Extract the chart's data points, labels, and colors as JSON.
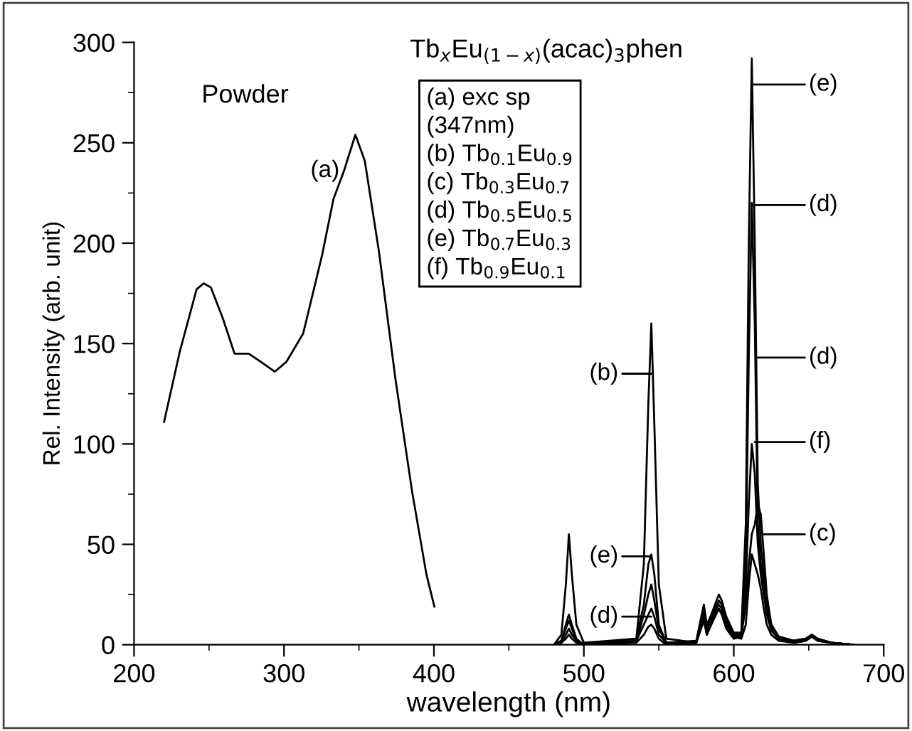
{
  "chart_data": {
    "type": "line",
    "title": "Tb$_{x}$Eu$_{(1−x)}$(acac)$_{3}$phen",
    "xlabel": "wavelength (nm)",
    "ylabel": "Rel. Intensity (arb. unit)",
    "x": [
      480,
      485,
      488,
      490,
      492,
      495,
      500,
      535,
      540,
      543,
      545,
      547,
      550,
      555,
      575,
      580,
      582,
      585,
      590,
      592,
      595,
      600,
      605,
      608,
      610,
      612,
      614,
      616,
      618,
      620,
      622,
      625,
      630,
      640,
      648,
      652,
      656,
      665,
      680
    ],
    "series": [
      {
        "color": "#000000",
        "x": [
          220,
          230.5,
          241.7,
          246.4,
          251.2,
          259,
          267,
          276.5,
          284.4,
          293.8,
          301.7,
          312.8,
          325.4,
          333,
          340,
          347.6,
          353.9,
          363.3,
          374.4,
          385.5,
          395,
          400.3
        ],
        "values": [
          111,
          146,
          177,
          180,
          178,
          163,
          145,
          145,
          141,
          136,
          141,
          155,
          194,
          222,
          236,
          254,
          241,
          196,
          132,
          76,
          35,
          19
        ]
      },
      {
        "color": "#000000",
        "values": [
          0,
          5,
          30,
          55,
          35,
          10,
          1,
          3,
          40,
          120,
          160,
          110,
          30,
          3,
          1,
          15,
          5,
          12,
          20,
          18,
          10,
          4,
          3,
          10,
          30,
          45,
          40,
          35,
          28,
          18,
          10,
          5,
          2,
          1,
          2,
          4,
          2,
          1,
          0
        ]
      },
      {
        "color": "#000000",
        "values": [
          0,
          2,
          10,
          15,
          10,
          3,
          0,
          2,
          15,
          25,
          30,
          22,
          8,
          1,
          1,
          12,
          5,
          10,
          18,
          15,
          8,
          3,
          4,
          20,
          40,
          55,
          60,
          70,
          65,
          45,
          25,
          10,
          4,
          2,
          3,
          5,
          3,
          1,
          0
        ]
      },
      {
        "color": "#000000",
        "values": [
          0,
          1,
          5,
          8,
          5,
          2,
          0,
          2,
          10,
          15,
          18,
          14,
          5,
          1,
          1,
          18,
          8,
          14,
          22,
          20,
          12,
          5,
          5,
          40,
          143,
          220,
          160,
          60,
          40,
          30,
          18,
          8,
          3,
          2,
          3,
          4,
          3,
          1,
          0
        ]
      },
      {
        "color": "#000000",
        "values": [
          0,
          2,
          8,
          12,
          8,
          2,
          0,
          3,
          20,
          40,
          45,
          35,
          10,
          1,
          2,
          20,
          10,
          15,
          25,
          22,
          14,
          6,
          6,
          60,
          200,
          292,
          200,
          80,
          50,
          35,
          20,
          10,
          4,
          2,
          3,
          5,
          3,
          1,
          0
        ]
      },
      {
        "color": "#000000",
        "values": [
          0,
          1,
          3,
          5,
          3,
          1,
          0,
          1,
          5,
          9,
          10,
          8,
          3,
          0,
          1,
          15,
          6,
          12,
          18,
          16,
          10,
          4,
          4,
          30,
          70,
          100,
          85,
          50,
          35,
          25,
          15,
          7,
          3,
          1,
          2,
          4,
          2,
          1,
          0
        ]
      }
    ],
    "xlim": [
      200,
      700
    ],
    "ylim": [
      0,
      300
    ],
    "xticks": [
      200,
      {
        "value": 250,
        "label": null
      },
      300,
      {
        "value": 350,
        "label": null
      },
      400,
      {
        "value": 450,
        "label": null
      },
      500,
      {
        "value": 550,
        "label": null
      },
      600,
      {
        "value": 650,
        "label": null
      },
      700
    ],
    "yticks": [
      0,
      {
        "value": 25,
        "label": null
      },
      50,
      {
        "value": 75,
        "label": null
      },
      100,
      {
        "value": 125,
        "label": null
      },
      150,
      {
        "value": 175,
        "label": null
      },
      200,
      {
        "value": 225,
        "label": null
      },
      250,
      {
        "value": 275,
        "label": null
      },
      300
    ],
    "grid": false,
    "legend": false,
    "annotations": [
      "Powder",
      "(a) exc sp\n(347nm)\n(b) Tb$_{0.1}$Eu$_{0.9}$\n(c) Tb$_{0.3}$Eu$_{0.7}$\n(d) Tb$_{0.5}$Eu$_{0.5}$\n(e) Tb$_{0.7}$Eu$_{0.3}$\n(f) Tb$_{0.9}$Eu$_{0.1}$",
      {
        "text": "(a)",
        "x": 337,
        "y": 236
      },
      {
        "text": "(b)",
        "x": 545,
        "y": 135
      },
      {
        "text": "(e)",
        "x": 545,
        "y": 44
      },
      {
        "text": "(d)",
        "x": 545,
        "y": 14
      },
      {
        "text": "(e)",
        "x": 613,
        "y": 279
      },
      {
        "text": "(d)",
        "x": 613,
        "y": 219
      },
      {
        "text": "(d)",
        "x": 616,
        "y": 143
      },
      {
        "text": "(f)",
        "x": 614,
        "y": 101
      },
      {
        "text": "(c)",
        "x": 620,
        "y": 55
      }
    ]
  }
}
